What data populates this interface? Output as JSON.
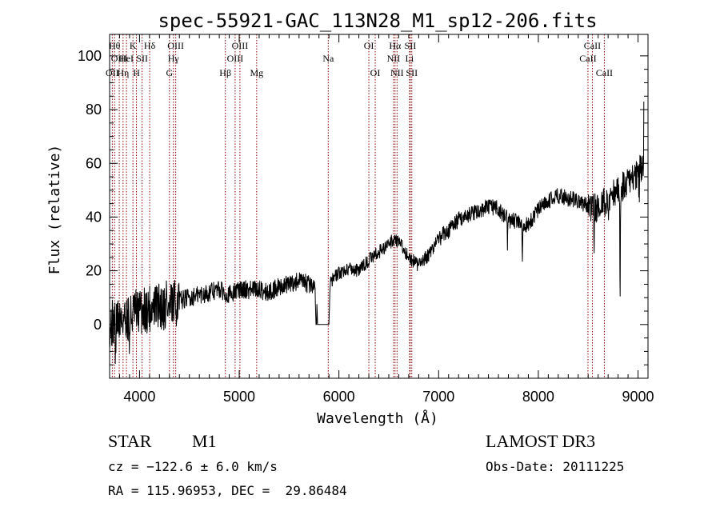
{
  "chart_data": {
    "type": "line",
    "title": "spec-55921-GAC_113N28_M1_sp12-206.fits",
    "xlabel": "Wavelength (Å)",
    "ylabel": "Flux (relative)",
    "xlim": [
      3700,
      9100
    ],
    "ylim": [
      -20,
      108
    ],
    "xticks": [
      4000,
      5000,
      6000,
      7000,
      8000,
      9000
    ],
    "yticks": [
      0,
      20,
      40,
      60,
      80,
      100
    ],
    "xtick_labels": [
      "4000",
      "5000",
      "6000",
      "7000",
      "8000",
      "9000"
    ],
    "ytick_labels": [
      "0",
      "20",
      "40",
      "60",
      "80",
      "100"
    ],
    "series": [
      {
        "name": "flux",
        "color": "#000000",
        "points": [
          [
            3700,
            0
          ],
          [
            3800,
            2
          ],
          [
            3900,
            3
          ],
          [
            4000,
            5
          ],
          [
            4100,
            6
          ],
          [
            4200,
            7
          ],
          [
            4300,
            6
          ],
          [
            4400,
            9
          ],
          [
            4500,
            10
          ],
          [
            4600,
            11
          ],
          [
            4700,
            12
          ],
          [
            4800,
            13
          ],
          [
            4900,
            11
          ],
          [
            5000,
            13
          ],
          [
            5100,
            13
          ],
          [
            5200,
            13
          ],
          [
            5300,
            12
          ],
          [
            5400,
            14
          ],
          [
            5500,
            15
          ],
          [
            5600,
            16
          ],
          [
            5700,
            15
          ],
          [
            5760,
            14
          ],
          [
            5770,
            0
          ],
          [
            5900,
            0
          ],
          [
            5910,
            16
          ],
          [
            6000,
            19
          ],
          [
            6100,
            21
          ],
          [
            6200,
            20
          ],
          [
            6300,
            24
          ],
          [
            6400,
            27
          ],
          [
            6500,
            30
          ],
          [
            6560,
            32
          ],
          [
            6600,
            31
          ],
          [
            6700,
            25
          ],
          [
            6800,
            22
          ],
          [
            6900,
            26
          ],
          [
            7000,
            32
          ],
          [
            7100,
            35
          ],
          [
            7200,
            39
          ],
          [
            7300,
            41
          ],
          [
            7400,
            42
          ],
          [
            7500,
            44
          ],
          [
            7600,
            43
          ],
          [
            7700,
            39
          ],
          [
            7800,
            38
          ],
          [
            7900,
            37
          ],
          [
            8000,
            43
          ],
          [
            8100,
            46
          ],
          [
            8200,
            48
          ],
          [
            8300,
            47
          ],
          [
            8400,
            46
          ],
          [
            8500,
            44
          ],
          [
            8600,
            43
          ],
          [
            8700,
            47
          ],
          [
            8800,
            50
          ],
          [
            8900,
            53
          ],
          [
            9000,
            56
          ],
          [
            9050,
            60
          ]
        ]
      }
    ],
    "noise": {
      "seed": 31,
      "bands": [
        {
          "from": 3700,
          "to": 4400,
          "amp": 18
        },
        {
          "from": 4400,
          "to": 5770,
          "amp": 7
        },
        {
          "from": 5900,
          "to": 7000,
          "amp": 5
        },
        {
          "from": 7000,
          "to": 8500,
          "amp": 6
        },
        {
          "from": 8500,
          "to": 9100,
          "amp": 11
        }
      ],
      "dips": [
        [
          3760,
          -16
        ],
        [
          3900,
          -14
        ],
        [
          7690,
          -10
        ],
        [
          7840,
          -12
        ],
        [
          8560,
          -12
        ],
        [
          8700,
          -10
        ],
        [
          8820,
          -46
        ],
        [
          9010,
          -40
        ]
      ],
      "spikes": [
        [
          4270,
          8
        ],
        [
          5780,
          10
        ],
        [
          9010,
          38
        ],
        [
          9060,
          50
        ]
      ]
    },
    "line_color": "#8b0000",
    "reference_lines": [
      {
        "wavelength": 3727,
        "label": "OII",
        "row": 3
      },
      {
        "wavelength": 3750,
        "label": "Hθ",
        "row": 1
      },
      {
        "wavelength": 3797,
        "label": "OIII",
        "row": 2
      },
      {
        "wavelength": 3835,
        "label": "Hη",
        "row": 3
      },
      {
        "wavelength": 3869,
        "label": "HeI",
        "row": 2
      },
      {
        "wavelength": 3934,
        "label": "K",
        "row": 1
      },
      {
        "wavelength": 3969,
        "label": "H",
        "row": 3
      },
      {
        "wavelength": 4026,
        "label": "SII",
        "row": 2
      },
      {
        "wavelength": 4102,
        "label": "Hδ",
        "row": 1
      },
      {
        "wavelength": 4300,
        "label": "G",
        "row": 3
      },
      {
        "wavelength": 4340,
        "label": "Hγ",
        "row": 2
      },
      {
        "wavelength": 4363,
        "label": "OIII",
        "row": 1
      },
      {
        "wavelength": 4861,
        "label": "Hβ",
        "row": 3
      },
      {
        "wavelength": 4959,
        "label": "OIII",
        "row": 2
      },
      {
        "wavelength": 5007,
        "label": "OIII",
        "row": 1
      },
      {
        "wavelength": 5175,
        "label": "Mg",
        "row": 3
      },
      {
        "wavelength": 5893,
        "label": "Na",
        "row": 2
      },
      {
        "wavelength": 6300,
        "label": "OI",
        "row": 1
      },
      {
        "wavelength": 6364,
        "label": "OI",
        "row": 3
      },
      {
        "wavelength": 6548,
        "label": "NII",
        "row": 2
      },
      {
        "wavelength": 6563,
        "label": "Hα",
        "row": 1
      },
      {
        "wavelength": 6583,
        "label": "NII",
        "row": 3
      },
      {
        "wavelength": 6708,
        "label": "Li",
        "row": 2
      },
      {
        "wavelength": 6716,
        "label": "SII",
        "row": 1
      },
      {
        "wavelength": 6731,
        "label": "SII",
        "row": 3
      },
      {
        "wavelength": 8498,
        "label": "CaII",
        "row": 2
      },
      {
        "wavelength": 8542,
        "label": "CaII",
        "row": 1
      },
      {
        "wavelength": 8662,
        "label": "CaII",
        "row": 3
      }
    ]
  },
  "info": {
    "object_class": "STAR",
    "subclass": "M1",
    "survey": "LAMOST DR3",
    "cz": "cz = −122.6 ± 6.0 km/s",
    "obs_date": "Obs-Date: 20111225",
    "coords": "RA = 115.96953, DEC =  29.86484"
  }
}
